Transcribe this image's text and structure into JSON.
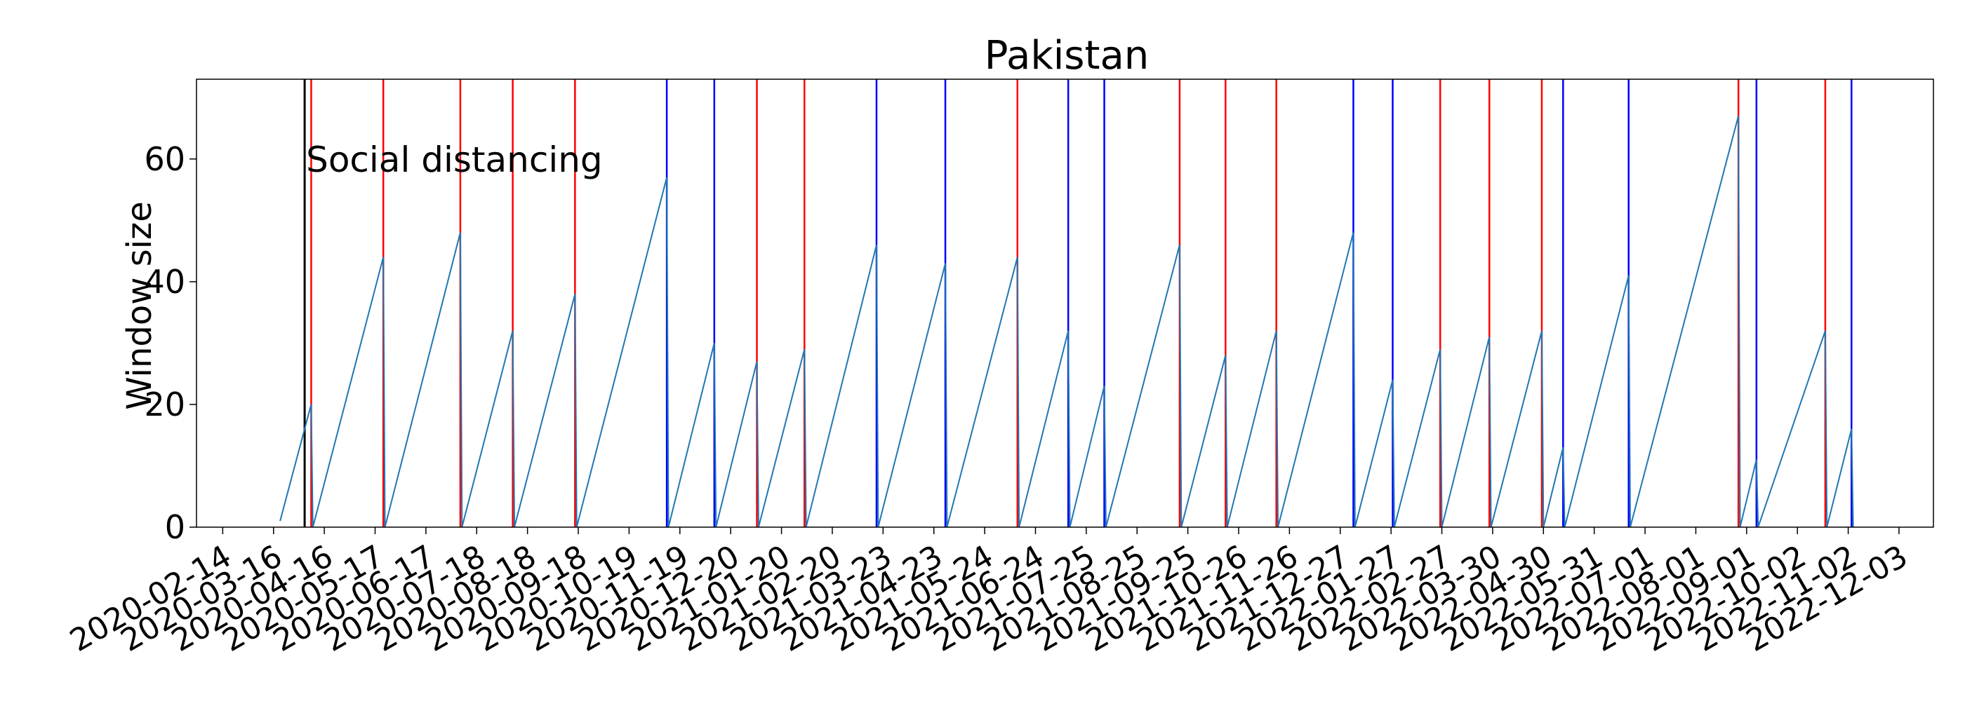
{
  "chart_data": {
    "type": "line",
    "title": "Pakistan",
    "xlabel": "",
    "ylabel": "Window size",
    "ylim": [
      0,
      73
    ],
    "xlim": [
      "2020-01-29",
      "2022-12-24"
    ],
    "grid": false,
    "y_ticks": [
      0,
      20,
      40,
      60
    ],
    "x_ticks": [
      "2020-02-14",
      "2020-03-16",
      "2020-04-16",
      "2020-05-17",
      "2020-06-17",
      "2020-07-18",
      "2020-08-18",
      "2020-09-18",
      "2020-10-19",
      "2020-11-19",
      "2020-12-20",
      "2021-01-20",
      "2021-02-20",
      "2021-03-23",
      "2021-04-23",
      "2021-05-24",
      "2021-06-24",
      "2021-07-25",
      "2021-08-25",
      "2021-09-25",
      "2021-10-26",
      "2021-11-26",
      "2021-12-27",
      "2022-01-27",
      "2022-02-27",
      "2022-03-30",
      "2022-04-30",
      "2022-05-31",
      "2022-07-01",
      "2022-08-01",
      "2022-09-01",
      "2022-10-02",
      "2022-11-02",
      "2022-12-03"
    ],
    "series": [
      {
        "points": [
          [
            "2020-03-20",
            1
          ],
          [
            "2020-04-08",
            20
          ],
          [
            "2020-04-09",
            0
          ],
          [
            "2020-05-22",
            44
          ],
          [
            "2020-05-23",
            0
          ],
          [
            "2020-07-08",
            48
          ],
          [
            "2020-07-09",
            0
          ],
          [
            "2020-08-09",
            32
          ],
          [
            "2020-08-10",
            0
          ],
          [
            "2020-09-16",
            38
          ],
          [
            "2020-09-17",
            0
          ],
          [
            "2020-11-11",
            57
          ],
          [
            "2020-11-12",
            0
          ],
          [
            "2020-12-10",
            30
          ],
          [
            "2020-12-11",
            0
          ],
          [
            "2021-01-05",
            27
          ],
          [
            "2021-01-06",
            0
          ],
          [
            "2021-02-03",
            29
          ],
          [
            "2021-02-04",
            0
          ],
          [
            "2021-03-19",
            46
          ],
          [
            "2021-03-20",
            0
          ],
          [
            "2021-04-30",
            43
          ],
          [
            "2021-05-01",
            0
          ],
          [
            "2021-06-13",
            44
          ],
          [
            "2021-06-14",
            0
          ],
          [
            "2021-07-14",
            32
          ],
          [
            "2021-07-15",
            0
          ],
          [
            "2021-08-05",
            23
          ],
          [
            "2021-08-06",
            0
          ],
          [
            "2021-09-20",
            46
          ],
          [
            "2021-09-21",
            0
          ],
          [
            "2021-10-18",
            28
          ],
          [
            "2021-10-19",
            0
          ],
          [
            "2021-11-18",
            32
          ],
          [
            "2021-11-19",
            0
          ],
          [
            "2022-01-04",
            48
          ],
          [
            "2022-01-05",
            0
          ],
          [
            "2022-01-28",
            24
          ],
          [
            "2022-01-29",
            0
          ],
          [
            "2022-02-26",
            29
          ],
          [
            "2022-02-27",
            0
          ],
          [
            "2022-03-28",
            31
          ],
          [
            "2022-03-29",
            0
          ],
          [
            "2022-04-29",
            32
          ],
          [
            "2022-04-30",
            0
          ],
          [
            "2022-05-12",
            13
          ],
          [
            "2022-05-13",
            0
          ],
          [
            "2022-06-21",
            41
          ],
          [
            "2022-06-22",
            0
          ],
          [
            "2022-08-27",
            67
          ],
          [
            "2022-08-28",
            0
          ],
          [
            "2022-09-07",
            11
          ],
          [
            "2022-09-08",
            0
          ],
          [
            "2022-10-19",
            32
          ],
          [
            "2022-10-20",
            0
          ],
          [
            "2022-11-04",
            16
          ],
          [
            "2022-11-05",
            0
          ]
        ],
        "color": "#1f77b4"
      }
    ],
    "vlines_red": [
      "2020-04-08",
      "2020-05-22",
      "2020-07-08",
      "2020-08-09",
      "2020-09-16",
      "2021-01-05",
      "2021-02-03",
      "2021-06-13",
      "2021-09-20",
      "2021-10-18",
      "2021-11-18",
      "2022-02-26",
      "2022-03-28",
      "2022-04-29",
      "2022-08-27",
      "2022-10-19"
    ],
    "vlines_blue": [
      "2020-11-11",
      "2020-12-10",
      "2021-03-19",
      "2021-04-30",
      "2021-07-14",
      "2021-08-05",
      "2022-01-04",
      "2022-01-28",
      "2022-05-12",
      "2022-06-21",
      "2022-09-07",
      "2022-11-04"
    ],
    "vlines_black": [
      "2020-04-04"
    ],
    "annotation": {
      "text": "Social distancing",
      "x": "2020-04-04",
      "y": 60
    },
    "colors": {
      "red_line": "#ff0000",
      "blue_line": "#0000ff",
      "black_line": "#000000",
      "series": "#1f77b4"
    }
  }
}
